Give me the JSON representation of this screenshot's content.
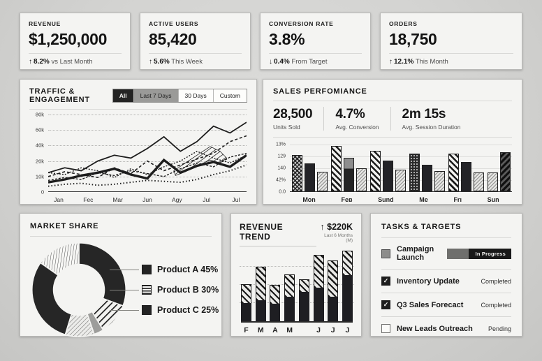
{
  "colors": {
    "background": "#d3d3d1",
    "panel": "#f4f4f2",
    "ink": "#161616",
    "mid_gray": "#8d8d8b",
    "divider": "#d9d9d7",
    "dark_fill": "#232323"
  },
  "kpis": [
    {
      "label": "REVENUE",
      "value": "$1,250,000",
      "arrow": "↑",
      "delta": "8.2%",
      "note": "vs Last Month"
    },
    {
      "label": "ACTIVE USERS",
      "value": "85,420",
      "arrow": "↑",
      "delta": "5.6%",
      "note": "This Week"
    },
    {
      "label": "CONVERSION RATE",
      "value": "3.8%",
      "arrow": "↓",
      "delta": "0.4%",
      "note": "From Target"
    },
    {
      "label": "ORDERS",
      "value": "18,750",
      "arrow": "↑",
      "delta": "12.1%",
      "note": "This Month"
    }
  ],
  "traffic": {
    "title": "TRAFFIC & ENGAGEMENT",
    "tabs": [
      {
        "label": "All",
        "style": "dark"
      },
      {
        "label": "Last 7 Days",
        "style": "gray"
      },
      {
        "label": "30 Days",
        "style": "light"
      },
      {
        "label": "Custom",
        "style": "light"
      }
    ],
    "chart_data": {
      "type": "line",
      "title": "Traffic & Engagement",
      "y_ticks": [
        "80k",
        "60k",
        "40k",
        "20k",
        "10k",
        "0"
      ],
      "x_labels": [
        "Jan",
        "Fec",
        "Mar",
        "Jun",
        "Agy",
        "Jul",
        "Jul"
      ],
      "ymax": 80,
      "grid": true,
      "series": [
        {
          "name": "solid-thin",
          "stroke": 1.8,
          "dash": "",
          "values": [
            20,
            25,
            22,
            32,
            38,
            35,
            45,
            57,
            42,
            52,
            68,
            61,
            72
          ]
        },
        {
          "name": "solid-thick",
          "stroke": 3.4,
          "dash": "",
          "values": [
            10,
            13,
            17,
            20,
            24,
            18,
            14,
            33,
            20,
            27,
            31,
            26,
            38
          ]
        },
        {
          "name": "dashed-rising",
          "stroke": 1.6,
          "dash": "4 3",
          "values": [
            16,
            21,
            18,
            15,
            25,
            19,
            32,
            22,
            28,
            34,
            40,
            52,
            58
          ]
        },
        {
          "name": "dashed-mid",
          "stroke": 1.4,
          "dash": "2 2",
          "values": [
            20,
            18,
            25,
            22,
            15,
            24,
            18,
            26,
            32,
            42,
            35,
            30,
            38
          ]
        },
        {
          "name": "dashed-low",
          "stroke": 1.4,
          "dash": "3 2",
          "values": [
            12,
            15,
            13,
            20,
            17,
            22,
            19,
            16,
            24,
            30,
            26,
            36,
            40
          ]
        },
        {
          "name": "dotted-bottom",
          "stroke": 2,
          "dash": "1.5 3",
          "values": [
            6,
            8,
            9,
            7,
            8,
            10,
            12,
            11,
            10,
            13,
            18,
            22,
            28
          ]
        }
      ],
      "hatch_band": [
        [
          7.6,
          22
        ],
        [
          8.3,
          30
        ],
        [
          9.0,
          38
        ],
        [
          9.8,
          47
        ],
        [
          10.4,
          42
        ],
        [
          10.8,
          35
        ],
        [
          10.4,
          30
        ],
        [
          9.8,
          33
        ],
        [
          9.0,
          27
        ],
        [
          8.3,
          21
        ],
        [
          7.7,
          17
        ]
      ]
    }
  },
  "sales": {
    "title": "SALES PERFOMIANCE",
    "stats": [
      {
        "value": "28,500",
        "label": "Units Sold"
      },
      {
        "value": "4.7%",
        "label": "Avg. Conversion"
      },
      {
        "value": "2m 15s",
        "label": "Avg. Session Duration"
      }
    ],
    "chart_data": {
      "type": "bar",
      "title": "Sales performance by day",
      "y_ticks": [
        "13%",
        "129",
        "140",
        "42%",
        "0.0"
      ],
      "ymax": 100,
      "groups": [
        {
          "label": "Mon",
          "bars": [
            {
              "pattern": "check",
              "value": 78
            },
            {
              "pattern": "solid",
              "value": 60
            },
            {
              "pattern": "lighthatch",
              "value": 42
            }
          ]
        },
        {
          "label": "Feв",
          "bars": [
            {
              "pattern": "hatch",
              "value": 97
            },
            {
              "pattern": "grayfade",
              "value": 72
            },
            {
              "pattern": "lighthatch",
              "value": 50
            }
          ]
        },
        {
          "label": "Sund",
          "bars": [
            {
              "pattern": "hatch",
              "value": 86
            },
            {
              "pattern": "solid",
              "value": 66
            },
            {
              "pattern": "lighthatch",
              "value": 46
            }
          ]
        },
        {
          "label": "Me",
          "bars": [
            {
              "pattern": "dots",
              "value": 80
            },
            {
              "pattern": "solid",
              "value": 56
            },
            {
              "pattern": "lighthatch",
              "value": 44
            }
          ]
        },
        {
          "label": "Frı",
          "bars": [
            {
              "pattern": "hatch",
              "value": 80
            },
            {
              "pattern": "solid",
              "value": 62
            },
            {
              "pattern": "lighthatch",
              "value": 40
            }
          ]
        },
        {
          "label": "Sun",
          "bars": [
            {
              "pattern": "lighthatch",
              "value": 40
            },
            {
              "pattern": "darkhatch",
              "value": 83
            }
          ]
        }
      ]
    }
  },
  "market": {
    "title": "MARKET SHARE",
    "chart_data": {
      "type": "pie",
      "title": "Market share",
      "values": [
        45,
        30,
        25
      ],
      "labels": [
        "Product A",
        "Product B",
        "Product C"
      ],
      "slices": [
        {
          "from": 0,
          "to": 110,
          "fill": "solid"
        },
        {
          "from": 110,
          "to": 149,
          "fill": "hatch"
        },
        {
          "from": 149,
          "to": 161,
          "fill": "gray"
        },
        {
          "from": 161,
          "to": 197,
          "fill": "lighthatch"
        },
        {
          "from": 197,
          "to": 305,
          "fill": "solid"
        },
        {
          "from": 305,
          "to": 360,
          "fill": "spokes"
        }
      ],
      "legend": [
        {
          "label": "Product A 45%",
          "swatch": "solid"
        },
        {
          "label": "Product B 30%",
          "swatch": "stripes"
        },
        {
          "label": "Product C 25%",
          "swatch": "solid"
        }
      ]
    }
  },
  "revenue_trend": {
    "title": "REVENUE TREND",
    "arrow": "↑",
    "highlight": "$220K",
    "subtitle": "Last 6 Months (M)",
    "chart_data": {
      "type": "bar",
      "title": "Revenue trend, stacked",
      "labels": [
        "F",
        "M",
        "A",
        "M",
        "",
        "J",
        "J",
        "J"
      ],
      "bars": [
        {
          "dark": 26,
          "total": 52
        },
        {
          "dark": 30,
          "total": 76
        },
        {
          "dark": 25,
          "total": 51
        },
        {
          "dark": 35,
          "total": 65
        },
        {
          "dark": 42,
          "total": 58
        },
        {
          "dark": 48,
          "total": 93
        },
        {
          "dark": 35,
          "total": 85
        },
        {
          "dark": 66,
          "total": 100
        }
      ],
      "unit": "percent-of-plot-height"
    }
  },
  "tasks": {
    "title": "TASKS & TARGETS",
    "items": [
      {
        "label": "Campaign Launch",
        "checkbox": "filled",
        "status": "In Progress",
        "status_kind": "pill"
      },
      {
        "label": "Inventory Update",
        "checkbox": "checked",
        "status": "Completed",
        "status_kind": "text"
      },
      {
        "label": "Q3 Sales Forecact",
        "checkbox": "checked",
        "status": "Completed",
        "status_kind": "text"
      },
      {
        "label": "New Leads Outreach",
        "checkbox": "empty",
        "status": "Pending",
        "status_kind": "text"
      }
    ]
  }
}
